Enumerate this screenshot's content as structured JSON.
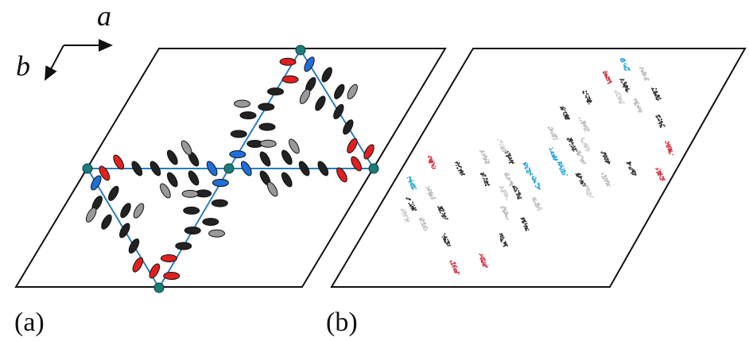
{
  "labels": {
    "axis_a": "a",
    "axis_b": "b"
  },
  "panels": [
    {
      "label": "(a)"
    },
    {
      "label": "(b)"
    }
  ]
}
